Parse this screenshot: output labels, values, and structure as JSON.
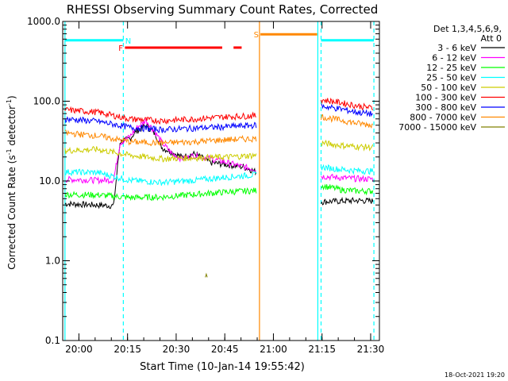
{
  "chart_data": {
    "type": "line",
    "title": "RHESSI Observing Summary Count Rates, Corrected",
    "xlabel": "Start Time (10-Jan-14 19:55:42)",
    "ylabel_main": "Corrected Count Rate (s",
    "ylabel_sup1": "-1",
    "ylabel_mid": " detector",
    "ylabel_sup2": "-1",
    "ylabel_end": ")",
    "x_unit": "minutes after 19:55:42",
    "xlim": [
      -0.7,
      97
    ],
    "ylim": [
      0.1,
      1000
    ],
    "y_scale": "log",
    "x_ticks": [
      {
        "label": "20:00",
        "value": 4.3
      },
      {
        "label": "20:15",
        "value": 19.3
      },
      {
        "label": "20:30",
        "value": 34.3
      },
      {
        "label": "20:45",
        "value": 49.3
      },
      {
        "label": "21:00",
        "value": 64.3
      },
      {
        "label": "21:15",
        "value": 79.3
      },
      {
        "label": "21:30",
        "value": 94.3
      }
    ],
    "y_ticks": [
      {
        "label": "0.1",
        "value": 0.1
      },
      {
        "label": "1.0",
        "value": 1
      },
      {
        "label": "10.0",
        "value": 10
      },
      {
        "label": "100.0",
        "value": 100
      },
      {
        "label": "1000.0",
        "value": 1000
      }
    ],
    "legend_header": [
      "Det 1,3,4,5,6,9,",
      "Att 0"
    ],
    "legend_position": "right",
    "footer_date": "18-Oct-2021 19:20",
    "segments": [
      [
        0,
        59.2
      ],
      [
        79,
        95.3
      ]
    ],
    "series": [
      {
        "name": "3 - 6 keV",
        "color": "#000000",
        "x": [
          0,
          5,
          10,
          15,
          17,
          20,
          22,
          25,
          28,
          30,
          33,
          36,
          40,
          45,
          50,
          55,
          59,
          79,
          85,
          90,
          95
        ],
        "y": [
          5.2,
          5.1,
          5.0,
          4.9,
          31,
          34,
          42,
          50,
          38,
          26,
          23,
          20,
          22,
          17,
          16,
          15,
          13,
          5.5,
          5.6,
          5.7,
          5.6
        ]
      },
      {
        "name": "6 - 12 keV",
        "color": "#ff00ff",
        "x": [
          0,
          5,
          10,
          15,
          17,
          20,
          22,
          25,
          28,
          30,
          33,
          36,
          40,
          45,
          50,
          55,
          59,
          79,
          85,
          90,
          95
        ],
        "y": [
          10.5,
          10.4,
          10.2,
          10.3,
          30,
          36,
          46,
          58,
          40,
          30,
          22,
          19,
          21,
          19,
          17,
          15,
          14,
          11.5,
          11,
          10.7,
          10.6
        ]
      },
      {
        "name": "12 - 25 keV",
        "color": "#00ff00",
        "x": [
          0,
          10,
          20,
          30,
          40,
          50,
          59,
          79,
          85,
          90,
          95
        ],
        "y": [
          6.8,
          6.7,
          6.2,
          6.3,
          6.8,
          7.3,
          7.6,
          8.8,
          7.8,
          7.5,
          7.5
        ]
      },
      {
        "name": "25 - 50 keV",
        "color": "#00ffff",
        "x": [
          0,
          10,
          20,
          30,
          40,
          50,
          59,
          79,
          85,
          90,
          95
        ],
        "y": [
          13,
          12.8,
          10.2,
          9.6,
          10.2,
          11.2,
          12,
          15,
          14,
          13.5,
          13.3
        ]
      },
      {
        "name": "50 - 100 keV",
        "color": "#cccc00",
        "x": [
          0,
          10,
          20,
          30,
          40,
          50,
          59,
          79,
          85,
          90,
          95
        ],
        "y": [
          24,
          25,
          21,
          19,
          19.5,
          20,
          21,
          30,
          28,
          27,
          26.5
        ]
      },
      {
        "name": "100 - 300 keV",
        "color": "#ff0000",
        "x": [
          0,
          10,
          20,
          30,
          40,
          50,
          59,
          79,
          85,
          90,
          95
        ],
        "y": [
          78,
          73,
          60,
          57,
          60,
          64,
          66,
          105,
          96,
          88,
          82
        ]
      },
      {
        "name": "300 - 800 keV",
        "color": "#0000ff",
        "x": [
          0,
          10,
          20,
          30,
          40,
          50,
          59,
          79,
          85,
          90,
          95
        ],
        "y": [
          60,
          56,
          47,
          44,
          46,
          48,
          50,
          87,
          80,
          73,
          69
        ]
      },
      {
        "name": "800 - 7000 keV",
        "color": "#ff8800",
        "x": [
          0,
          10,
          20,
          30,
          40,
          50,
          59,
          79,
          85,
          90,
          95
        ],
        "y": [
          40,
          37,
          31,
          30,
          31,
          33,
          34,
          64,
          58,
          53,
          50
        ]
      },
      {
        "name": "7000 - 15000 keV",
        "color": "#808000",
        "x": [
          43.3,
          43.6,
          43.9
        ],
        "y": [
          0.62,
          0.68,
          0.62
        ]
      }
    ],
    "flag_bars": [
      {
        "label": "N",
        "color": "#00ffff",
        "y": 580,
        "ranges": [
          [
            0,
            18
          ]
        ],
        "label_x": 19.5
      },
      {
        "label": "N",
        "color": "#00ffff",
        "y": 580,
        "ranges": [
          [
            79,
            95.3
          ]
        ],
        "label_x": null
      },
      {
        "label": "F",
        "color": "#ff0000",
        "y": 470,
        "ranges": [
          [
            18.5,
            48.5
          ],
          [
            52,
            54.5
          ]
        ],
        "label_x": 17.2
      },
      {
        "label": "S",
        "color": "#ff8800",
        "y": 690,
        "ranges": [
          [
            60.3,
            77.8
          ]
        ],
        "label_x": 59
      }
    ],
    "vertical_lines": [
      {
        "x": 0,
        "color": "#00ffff",
        "style": "solid"
      },
      {
        "x": 18,
        "color": "#00ffff",
        "style": "dashed"
      },
      {
        "x": 60,
        "color": "#ff8800",
        "style": "solid"
      },
      {
        "x": 78,
        "color": "#00ffff",
        "style": "solid"
      },
      {
        "x": 79,
        "color": "#00ffff",
        "style": "dashed"
      },
      {
        "x": 95.3,
        "color": "#00ffff",
        "style": "dashed"
      }
    ]
  }
}
